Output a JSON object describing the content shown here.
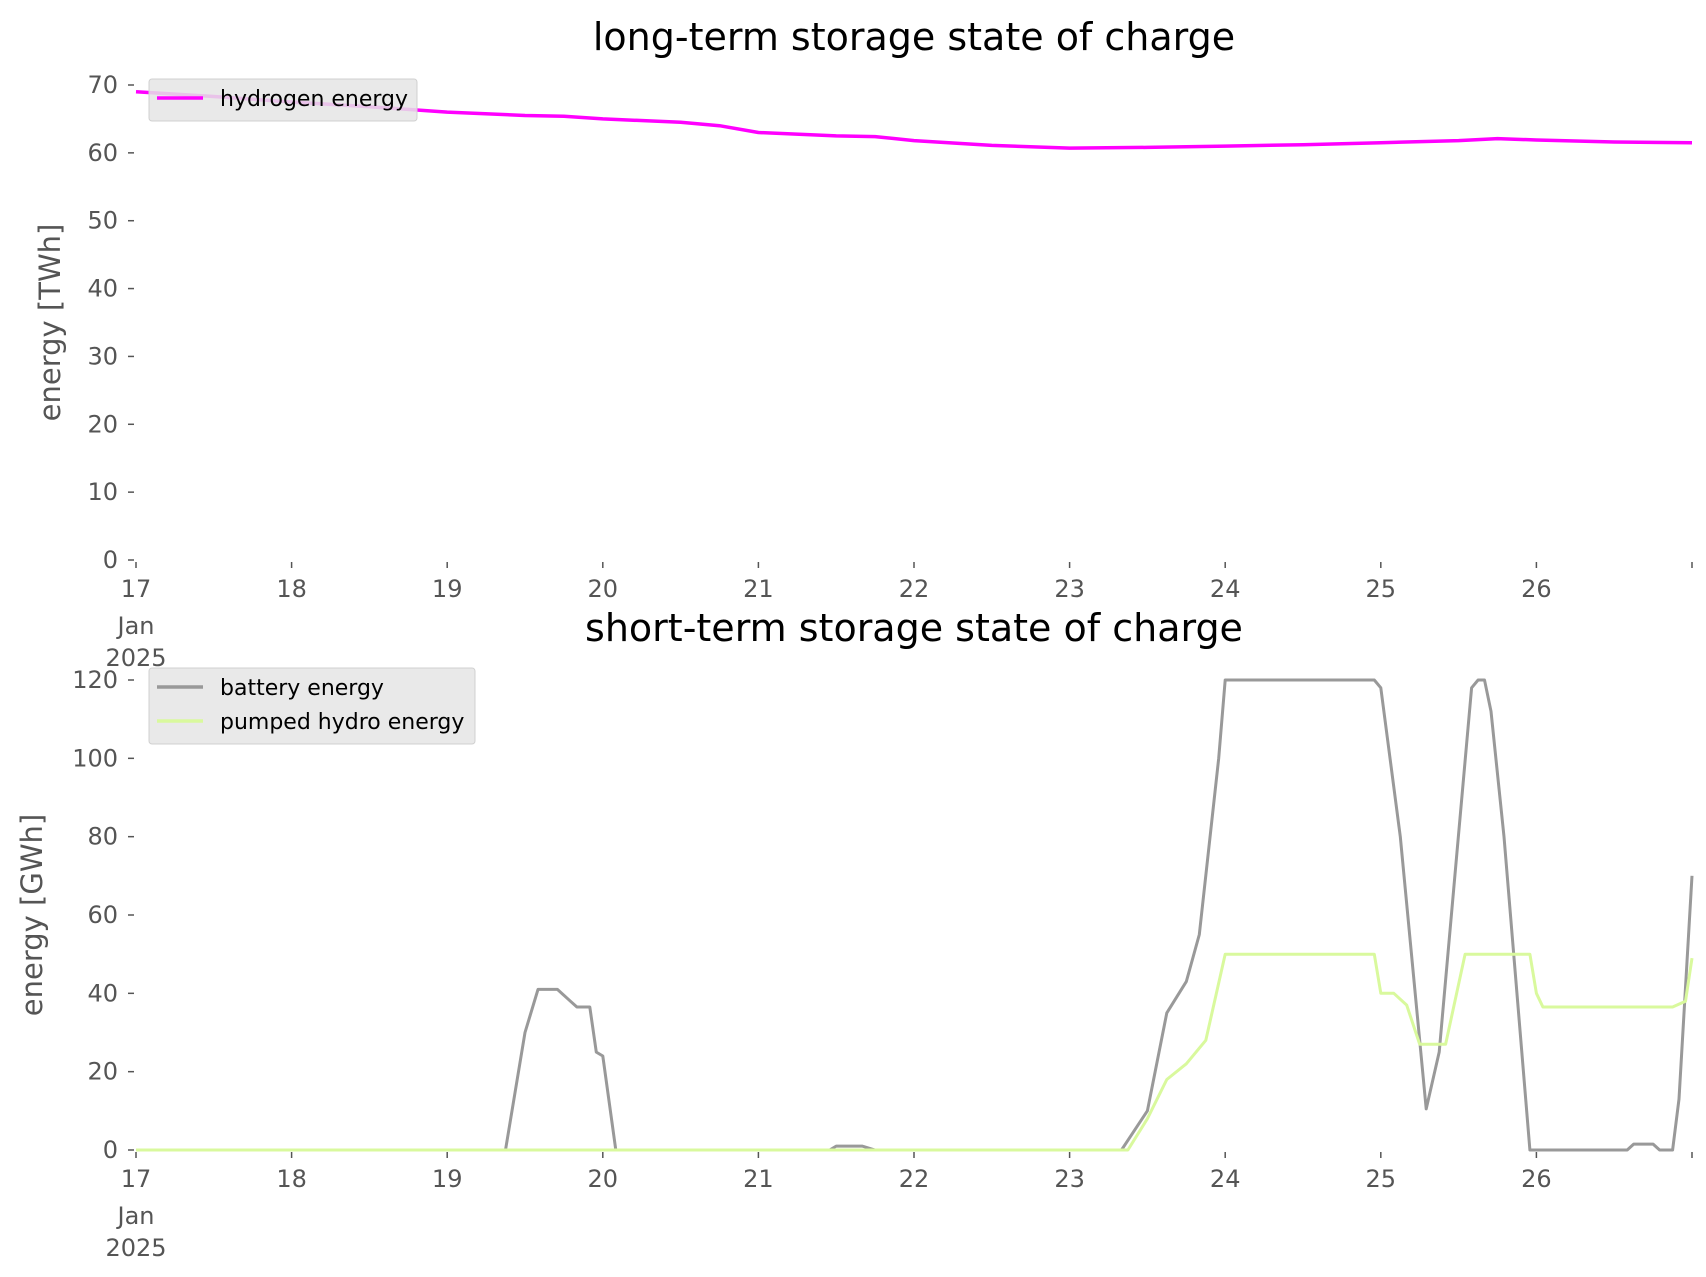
{
  "chart_data": [
    {
      "type": "line",
      "title": "long-term storage state of charge",
      "xlabel": "",
      "ylabel": "energy [TWh]",
      "ylim": [
        0,
        70
      ],
      "yticks": [
        0,
        10,
        20,
        30,
        40,
        50,
        60,
        70
      ],
      "xlim": [
        "2025-01-17",
        "2025-01-27"
      ],
      "xticks": [
        {
          "date": "2025-01-17",
          "label": "17",
          "sublabel1": "Jan",
          "sublabel2": "2025"
        },
        {
          "date": "2025-01-18",
          "label": "18"
        },
        {
          "date": "2025-01-19",
          "label": "19"
        },
        {
          "date": "2025-01-20",
          "label": "20"
        },
        {
          "date": "2025-01-21",
          "label": "21"
        },
        {
          "date": "2025-01-22",
          "label": "22"
        },
        {
          "date": "2025-01-23",
          "label": "23"
        },
        {
          "date": "2025-01-24",
          "label": "24"
        },
        {
          "date": "2025-01-25",
          "label": "25"
        },
        {
          "date": "2025-01-26",
          "label": "26"
        }
      ],
      "grid": false,
      "legend_position": "top-left",
      "series": [
        {
          "name": "hydrogen energy",
          "color": "#ff00ff",
          "points": [
            [
              "2025-01-17 00:00",
              69.0
            ],
            [
              "2025-01-17 12:00",
              68.3
            ],
            [
              "2025-01-18 00:00",
              67.5
            ],
            [
              "2025-01-18 12:00",
              66.8
            ],
            [
              "2025-01-19 00:00",
              66.0
            ],
            [
              "2025-01-19 12:00",
              65.5
            ],
            [
              "2025-01-19 18:00",
              65.4
            ],
            [
              "2025-01-20 00:00",
              65.0
            ],
            [
              "2025-01-20 12:00",
              64.5
            ],
            [
              "2025-01-20 18:00",
              64.0
            ],
            [
              "2025-01-21 00:00",
              63.0
            ],
            [
              "2025-01-21 12:00",
              62.5
            ],
            [
              "2025-01-21 18:00",
              62.4
            ],
            [
              "2025-01-22 00:00",
              61.8
            ],
            [
              "2025-01-22 12:00",
              61.1
            ],
            [
              "2025-01-23 00:00",
              60.7
            ],
            [
              "2025-01-23 12:00",
              60.8
            ],
            [
              "2025-01-24 00:00",
              61.0
            ],
            [
              "2025-01-24 12:00",
              61.2
            ],
            [
              "2025-01-25 00:00",
              61.5
            ],
            [
              "2025-01-25 12:00",
              61.8
            ],
            [
              "2025-01-25 18:00",
              62.1
            ],
            [
              "2025-01-26 00:00",
              61.9
            ],
            [
              "2025-01-26 12:00",
              61.6
            ],
            [
              "2025-01-27 00:00",
              61.5
            ]
          ]
        }
      ]
    },
    {
      "type": "line",
      "title": "short-term storage state of charge",
      "xlabel": "",
      "ylabel": "energy [GWh]",
      "ylim": [
        0,
        120
      ],
      "yticks": [
        0,
        20,
        40,
        60,
        80,
        100,
        120
      ],
      "xlim": [
        "2025-01-17",
        "2025-01-27"
      ],
      "xticks": [
        {
          "date": "2025-01-17",
          "label": "17",
          "sublabel1": "Jan",
          "sublabel2": "2025"
        },
        {
          "date": "2025-01-18",
          "label": "18"
        },
        {
          "date": "2025-01-19",
          "label": "19"
        },
        {
          "date": "2025-01-20",
          "label": "20"
        },
        {
          "date": "2025-01-21",
          "label": "21"
        },
        {
          "date": "2025-01-22",
          "label": "22"
        },
        {
          "date": "2025-01-23",
          "label": "23"
        },
        {
          "date": "2025-01-24",
          "label": "24"
        },
        {
          "date": "2025-01-25",
          "label": "25"
        },
        {
          "date": "2025-01-26",
          "label": "26"
        }
      ],
      "grid": false,
      "legend_position": "top-left",
      "series": [
        {
          "name": "battery energy",
          "color": "#999999",
          "points": [
            [
              "2025-01-17 00:00",
              0
            ],
            [
              "2025-01-19 09:00",
              0
            ],
            [
              "2025-01-19 12:00",
              30
            ],
            [
              "2025-01-19 14:00",
              41
            ],
            [
              "2025-01-19 17:00",
              41
            ],
            [
              "2025-01-19 19:00",
              38
            ],
            [
              "2025-01-19 20:00",
              36.5
            ],
            [
              "2025-01-19 22:00",
              36.5
            ],
            [
              "2025-01-19 23:00",
              25
            ],
            [
              "2025-01-20 00:00",
              24
            ],
            [
              "2025-01-20 01:00",
              12
            ],
            [
              "2025-01-20 02:00",
              0
            ],
            [
              "2025-01-21 11:00",
              0
            ],
            [
              "2025-01-21 12:00",
              1
            ],
            [
              "2025-01-21 16:00",
              1
            ],
            [
              "2025-01-21 18:00",
              0
            ],
            [
              "2025-01-23 08:00",
              0
            ],
            [
              "2025-01-23 12:00",
              10
            ],
            [
              "2025-01-23 15:00",
              35
            ],
            [
              "2025-01-23 18:00",
              43
            ],
            [
              "2025-01-23 20:00",
              55
            ],
            [
              "2025-01-23 23:00",
              100
            ],
            [
              "2025-01-24 00:00",
              120
            ],
            [
              "2025-01-24 23:00",
              120
            ],
            [
              "2025-01-25 00:00",
              118
            ],
            [
              "2025-01-25 03:00",
              80
            ],
            [
              "2025-01-25 07:00",
              10.5
            ],
            [
              "2025-01-25 09:00",
              25
            ],
            [
              "2025-01-25 14:00",
              118
            ],
            [
              "2025-01-25 15:00",
              120
            ],
            [
              "2025-01-25 16:00",
              120
            ],
            [
              "2025-01-25 17:00",
              112
            ],
            [
              "2025-01-25 19:00",
              80
            ],
            [
              "2025-01-25 23:00",
              0
            ],
            [
              "2025-01-26 14:00",
              0
            ],
            [
              "2025-01-26 15:00",
              1.5
            ],
            [
              "2025-01-26 18:00",
              1.5
            ],
            [
              "2025-01-26 19:00",
              0
            ],
            [
              "2025-01-26 21:00",
              0
            ],
            [
              "2025-01-26 22:00",
              13
            ],
            [
              "2025-01-27 00:00",
              70
            ]
          ]
        },
        {
          "name": "pumped hydro energy",
          "color": "#d9f99d",
          "points": [
            [
              "2025-01-17 00:00",
              0
            ],
            [
              "2025-01-23 09:00",
              0
            ],
            [
              "2025-01-23 12:00",
              8
            ],
            [
              "2025-01-23 15:00",
              18
            ],
            [
              "2025-01-23 18:00",
              22
            ],
            [
              "2025-01-23 21:00",
              28
            ],
            [
              "2025-01-24 00:00",
              50
            ],
            [
              "2025-01-24 23:00",
              50
            ],
            [
              "2025-01-25 00:00",
              40
            ],
            [
              "2025-01-25 02:00",
              40
            ],
            [
              "2025-01-25 04:00",
              37
            ],
            [
              "2025-01-25 06:00",
              27
            ],
            [
              "2025-01-25 10:00",
              27
            ],
            [
              "2025-01-25 13:00",
              50
            ],
            [
              "2025-01-25 23:00",
              50
            ],
            [
              "2025-01-26 00:00",
              40
            ],
            [
              "2025-01-26 01:00",
              36.5
            ],
            [
              "2025-01-26 21:00",
              36.5
            ],
            [
              "2025-01-26 23:00",
              38
            ],
            [
              "2025-01-27 00:00",
              49
            ]
          ]
        }
      ]
    }
  ]
}
